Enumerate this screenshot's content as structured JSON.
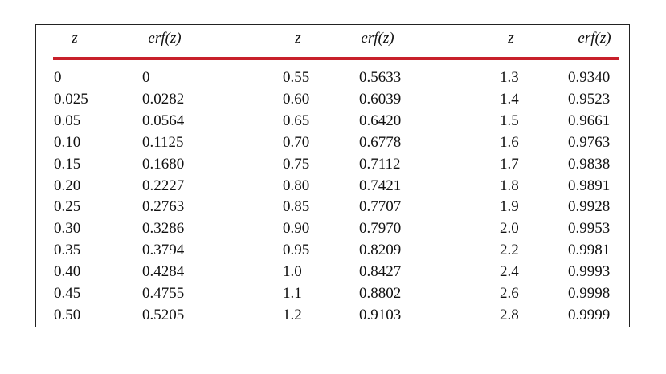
{
  "table": {
    "header": [
      "z",
      "erf(z)",
      "z",
      "erf(z)",
      "z",
      "erf(z)"
    ],
    "rows": [
      [
        "0",
        "0",
        "0.55",
        "0.5633",
        "1.3",
        "0.9340"
      ],
      [
        "0.025",
        "0.0282",
        "0.60",
        "0.6039",
        "1.4",
        "0.9523"
      ],
      [
        "0.05",
        "0.0564",
        "0.65",
        "0.6420",
        "1.5",
        "0.9661"
      ],
      [
        "0.10",
        "0.1125",
        "0.70",
        "0.6778",
        "1.6",
        "0.9763"
      ],
      [
        "0.15",
        "0.1680",
        "0.75",
        "0.7112",
        "1.7",
        "0.9838"
      ],
      [
        "0.20",
        "0.2227",
        "0.80",
        "0.7421",
        "1.8",
        "0.9891"
      ],
      [
        "0.25",
        "0.2763",
        "0.85",
        "0.7707",
        "1.9",
        "0.9928"
      ],
      [
        "0.30",
        "0.3286",
        "0.90",
        "0.7970",
        "2.0",
        "0.9953"
      ],
      [
        "0.35",
        "0.3794",
        "0.95",
        "0.8209",
        "2.2",
        "0.9981"
      ],
      [
        "0.40",
        "0.4284",
        "1.0",
        "0.8427",
        "2.4",
        "0.9993"
      ],
      [
        "0.45",
        "0.4755",
        "1.1",
        "0.8802",
        "2.6",
        "0.9998"
      ],
      [
        "0.50",
        "0.5205",
        "1.2",
        "0.9103",
        "2.8",
        "0.9999"
      ]
    ]
  }
}
